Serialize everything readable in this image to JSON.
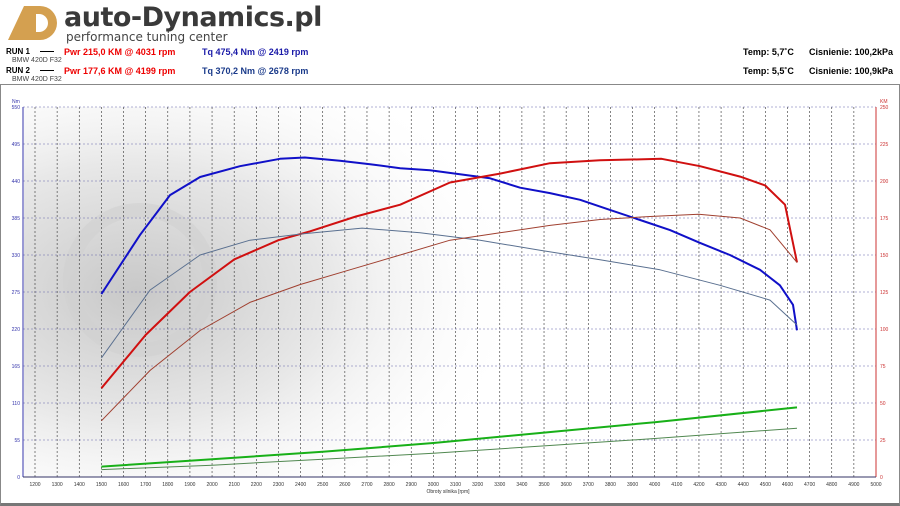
{
  "header": {
    "brand": "auto-Dynamics.pl",
    "tagline": "performance tuning center",
    "logo_text": "AD"
  },
  "runs": [
    {
      "label": "RUN 1",
      "car": "BMW 420D F32",
      "pwr": "Pwr  215,0 KM @ 4031 rpm",
      "tq": "Tq 475,4 Nm @ 2419 rpm",
      "temp": "Temp: 5,7˚C",
      "pressure": "Cisnienie: 100,2kPa"
    },
    {
      "label": "RUN 2",
      "car": "BMW 420D F32",
      "pwr": "Pwr  177,6 KM @ 4199 rpm",
      "tq": "Tq 370,2 Nm @ 2678 rpm",
      "temp": "Temp: 5,5˚C",
      "pressure": "Cisnienie: 100,9kPa"
    }
  ],
  "chart_data": {
    "type": "line",
    "xlabel": "Obroty silnika [rpm]",
    "ylabel_left": "Nm",
    "ylabel_right": "KM",
    "xlim": [
      1130,
      5000
    ],
    "ylim_left": [
      0,
      550
    ],
    "ylim_right": [
      0,
      250
    ],
    "x_ticks": [
      1200,
      1300,
      1400,
      1500,
      1600,
      1700,
      1800,
      1900,
      2000,
      2100,
      2200,
      2300,
      2400,
      2500,
      2600,
      2700,
      2800,
      2900,
      3000,
      3100,
      3200,
      3300,
      3400,
      3500,
      3600,
      3700,
      3800,
      3900,
      4000,
      4100,
      4200,
      4300,
      4400,
      4500,
      4600,
      4700,
      4800,
      4900,
      5000
    ],
    "y_ticks_left": [
      0,
      55,
      110,
      165,
      220,
      275,
      330,
      385,
      440,
      495,
      550
    ],
    "y_ticks_right": [
      0,
      25,
      50,
      75,
      100,
      125,
      150,
      175,
      200,
      225,
      250
    ],
    "grid": true,
    "colors": {
      "tq1": "#1010c8",
      "pwr1": "#d01010",
      "tq2": "#5a7090",
      "pwr2": "#a04030",
      "loss1": "#18b018",
      "loss2": "#508850"
    },
    "series": [
      {
        "key": "tq1",
        "axis": "left",
        "width": 2,
        "x": [
          1500,
          1675,
          1810,
          1946,
          2126,
          2307,
          2419,
          2578,
          2714,
          2850,
          2985,
          3120,
          3256,
          3392,
          3527,
          3663,
          3798,
          3934,
          4069,
          4205,
          4340,
          4476,
          4566,
          4625,
          4643
        ],
        "y": [
          272,
          360,
          419,
          446,
          462,
          473,
          475,
          470,
          465,
          459,
          456,
          450,
          444,
          430,
          422,
          412,
          397,
          382,
          367,
          348,
          330,
          308,
          285,
          256,
          218
        ]
      },
      {
        "key": "pwr1",
        "axis": "right",
        "width": 2,
        "x": [
          1500,
          1700,
          1900,
          2100,
          2300,
          2443,
          2650,
          2850,
          3075,
          3301,
          3527,
          3753,
          4031,
          4205,
          4386,
          4499,
          4589,
          4643
        ],
        "y": [
          60,
          96,
          125,
          147,
          160,
          166,
          176,
          184,
          199,
          205,
          212,
          214,
          215,
          210,
          203,
          197,
          184,
          145
        ]
      },
      {
        "key": "tq2",
        "axis": "left",
        "width": 1,
        "x": [
          1500,
          1720,
          1946,
          2171,
          2397,
          2678,
          2940,
          3211,
          3482,
          3753,
          4024,
          4295,
          4521,
          4643
        ],
        "y": [
          177,
          278,
          330,
          352,
          361,
          370,
          363,
          352,
          337,
          323,
          308,
          285,
          263,
          226
        ]
      },
      {
        "key": "pwr2",
        "axis": "right",
        "width": 1,
        "x": [
          1500,
          1720,
          1946,
          2171,
          2397,
          2623,
          2850,
          3075,
          3301,
          3527,
          3753,
          3979,
          4199,
          4386,
          4521,
          4643
        ],
        "y": [
          38,
          72,
          99,
          118,
          130,
          140,
          150,
          160,
          165,
          170,
          174,
          176,
          177.6,
          175,
          167,
          145
        ]
      },
      {
        "key": "loss1",
        "axis": "right",
        "width": 2,
        "x": [
          1500,
          2000,
          2500,
          3000,
          3500,
          4000,
          4643
        ],
        "y": [
          7,
          12,
          17,
          23,
          30,
          37,
          47
        ]
      },
      {
        "key": "loss2",
        "axis": "right",
        "width": 1,
        "x": [
          1500,
          2000,
          2500,
          3000,
          3500,
          4000,
          4643
        ],
        "y": [
          5,
          8,
          12,
          16,
          21,
          26,
          33
        ]
      }
    ]
  }
}
